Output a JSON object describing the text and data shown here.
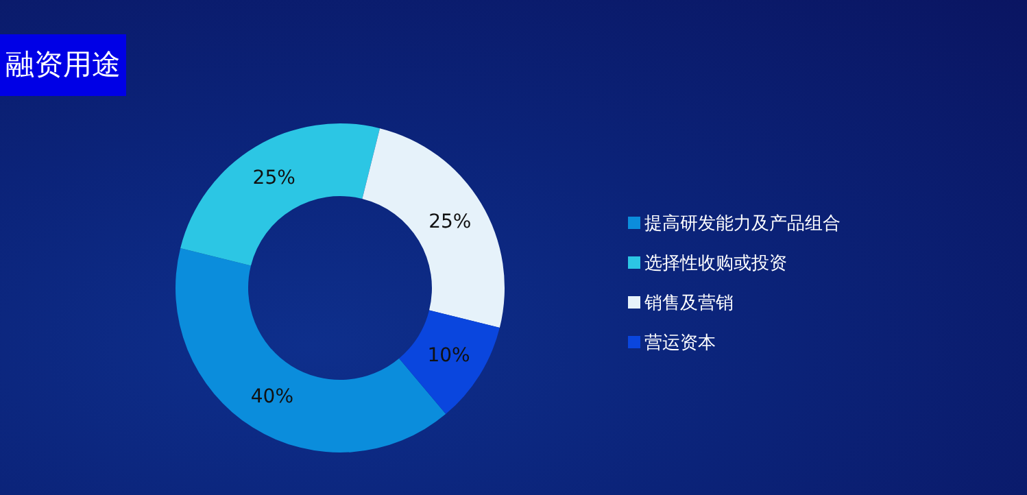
{
  "chart_data": {
    "type": "donut",
    "title": "融资用途",
    "categories": [
      "提高研发能力及产品组合",
      "选择性收购或投资",
      "销售及营销",
      "营运资本"
    ],
    "values": [
      40,
      25,
      25,
      10
    ],
    "colors": [
      "#0b8ddc",
      "#2cc6e4",
      "#e6f2fa",
      "#0a46de"
    ],
    "value_labels": [
      "40%",
      "25%",
      "25%",
      "10%"
    ],
    "legend": "right"
  }
}
